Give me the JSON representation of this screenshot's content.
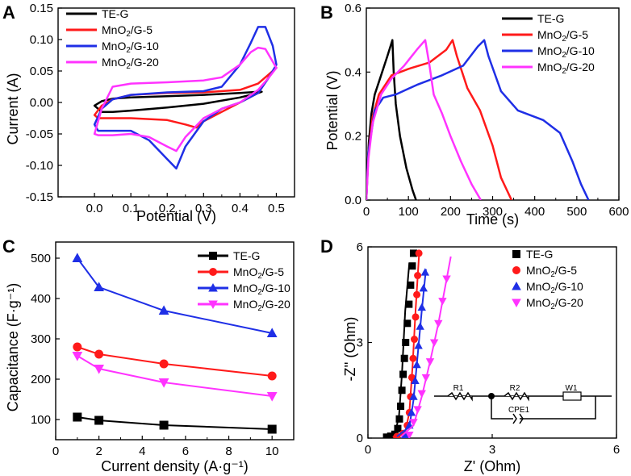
{
  "colors": {
    "black": "#000000",
    "red": "#ff1a1a",
    "blue": "#1f2fe6",
    "magenta": "#ff33ff"
  },
  "chart_data": [
    {
      "panel": "A",
      "type": "line",
      "title": "",
      "xlabel": "Potential (V)",
      "ylabel": "Current (A)",
      "xlim": [
        -0.1,
        0.55
      ],
      "ylim": [
        -0.15,
        0.15
      ],
      "xticks": [
        0.0,
        0.1,
        0.2,
        0.3,
        0.4,
        0.5
      ],
      "yticks": [
        -0.15,
        -0.1,
        -0.05,
        0.0,
        0.05,
        0.1,
        0.15
      ],
      "xtick_labels": [
        "0.0",
        "0.1",
        "0.2",
        "0.3",
        "0.4",
        "0.5"
      ],
      "ytick_labels": [
        "-0.15",
        "-0.10",
        "-0.05",
        "0.00",
        "0.05",
        "0.10",
        "0.15"
      ],
      "legend": "top-left",
      "series": [
        {
          "name": "TE-G",
          "color": "#000000",
          "x": [
            0.0,
            0.02,
            0.05,
            0.1,
            0.2,
            0.3,
            0.4,
            0.45,
            0.46,
            0.45,
            0.4,
            0.3,
            0.2,
            0.1,
            0.05,
            0.02,
            0.0
          ],
          "y": [
            -0.005,
            0.002,
            0.006,
            0.008,
            0.01,
            0.012,
            0.015,
            0.017,
            0.017,
            0.015,
            0.008,
            -0.002,
            -0.008,
            -0.013,
            -0.015,
            -0.015,
            -0.005
          ]
        },
        {
          "name": "MnO2/G-5",
          "color": "#ff1a1a",
          "x": [
            0.0,
            0.02,
            0.05,
            0.1,
            0.2,
            0.3,
            0.4,
            0.45,
            0.48,
            0.5,
            0.49,
            0.45,
            0.4,
            0.35,
            0.3,
            0.28,
            0.25,
            0.2,
            0.1,
            0.05,
            0.01,
            0.0
          ],
          "y": [
            -0.02,
            -0.005,
            0.005,
            0.012,
            0.015,
            0.016,
            0.02,
            0.03,
            0.045,
            0.055,
            0.05,
            0.015,
            0.0,
            -0.015,
            -0.03,
            -0.04,
            -0.035,
            -0.028,
            -0.025,
            -0.025,
            -0.025,
            -0.02
          ]
        },
        {
          "name": "MnO2/G-10",
          "color": "#1f2fe6",
          "x": [
            0.0,
            0.02,
            0.05,
            0.1,
            0.2,
            0.3,
            0.35,
            0.4,
            0.43,
            0.45,
            0.47,
            0.49,
            0.5,
            0.48,
            0.45,
            0.4,
            0.35,
            0.3,
            0.25,
            0.225,
            0.2,
            0.15,
            0.1,
            0.05,
            0.01,
            0.0
          ],
          "y": [
            -0.035,
            -0.01,
            0.005,
            0.012,
            0.016,
            0.018,
            0.025,
            0.06,
            0.095,
            0.12,
            0.12,
            0.09,
            0.06,
            0.04,
            0.015,
            0.0,
            -0.01,
            -0.03,
            -0.07,
            -0.105,
            -0.09,
            -0.06,
            -0.045,
            -0.045,
            -0.045,
            -0.035
          ]
        },
        {
          "name": "MnO2/G-20",
          "color": "#ff33ff",
          "x": [
            0.0,
            0.02,
            0.05,
            0.1,
            0.2,
            0.3,
            0.35,
            0.4,
            0.43,
            0.45,
            0.47,
            0.5,
            0.48,
            0.45,
            0.4,
            0.35,
            0.3,
            0.25,
            0.225,
            0.2,
            0.15,
            0.1,
            0.05,
            0.01,
            0.0
          ],
          "y": [
            -0.05,
            -0.01,
            0.025,
            0.03,
            0.032,
            0.035,
            0.04,
            0.06,
            0.08,
            0.087,
            0.085,
            0.055,
            0.04,
            0.02,
            0.0,
            -0.01,
            -0.025,
            -0.055,
            -0.077,
            -0.07,
            -0.055,
            -0.05,
            -0.052,
            -0.052,
            -0.05
          ]
        }
      ]
    },
    {
      "panel": "B",
      "type": "line",
      "title": "",
      "xlabel": "Time (s)",
      "ylabel": "Potential (V)",
      "xlim": [
        0,
        600
      ],
      "ylim": [
        0,
        0.6
      ],
      "xticks": [
        0,
        100,
        200,
        300,
        400,
        500,
        600
      ],
      "yticks": [
        0.0,
        0.2,
        0.4,
        0.6
      ],
      "xtick_labels": [
        "0",
        "100",
        "200",
        "300",
        "400",
        "500",
        "600"
      ],
      "ytick_labels": [
        "0.0",
        "0.2",
        "0.4",
        "0.6"
      ],
      "legend": "top-right",
      "series": [
        {
          "name": "TE-G",
          "color": "#000000",
          "x": [
            0,
            2,
            6,
            12,
            20,
            35,
            50,
            62,
            65,
            70,
            80,
            95,
            110,
            118
          ],
          "y": [
            0.0,
            0.08,
            0.18,
            0.27,
            0.33,
            0.39,
            0.45,
            0.5,
            0.4,
            0.3,
            0.2,
            0.1,
            0.03,
            0.0
          ]
        },
        {
          "name": "MnO2/G-5",
          "color": "#ff1a1a",
          "x": [
            0,
            5,
            15,
            30,
            60,
            100,
            150,
            190,
            205,
            215,
            240,
            270,
            300,
            320,
            345
          ],
          "y": [
            0.0,
            0.15,
            0.26,
            0.33,
            0.39,
            0.41,
            0.43,
            0.47,
            0.5,
            0.45,
            0.35,
            0.28,
            0.17,
            0.07,
            0.0
          ]
        },
        {
          "name": "MnO2/G-10",
          "color": "#1f2fe6",
          "x": [
            0,
            5,
            20,
            40,
            70,
            120,
            180,
            230,
            265,
            280,
            290,
            320,
            360,
            420,
            460,
            490,
            510,
            528
          ],
          "y": [
            0.0,
            0.15,
            0.28,
            0.32,
            0.33,
            0.36,
            0.39,
            0.42,
            0.48,
            0.5,
            0.45,
            0.34,
            0.28,
            0.25,
            0.21,
            0.12,
            0.05,
            0.0
          ]
        },
        {
          "name": "MnO2/G-20",
          "color": "#ff33ff",
          "x": [
            0,
            5,
            15,
            35,
            60,
            90,
            120,
            140,
            150,
            160,
            180,
            200,
            225,
            250,
            272
          ],
          "y": [
            0.0,
            0.13,
            0.24,
            0.33,
            0.38,
            0.42,
            0.47,
            0.5,
            0.42,
            0.33,
            0.27,
            0.2,
            0.12,
            0.05,
            0.0
          ]
        }
      ]
    },
    {
      "panel": "C",
      "type": "line",
      "title": "",
      "xlabel": "Current density (A·g⁻¹)",
      "ylabel": "Capacitance (F·g⁻¹)",
      "xlim": [
        0,
        11
      ],
      "ylim": [
        50,
        540
      ],
      "xticks": [
        0,
        2,
        4,
        6,
        8,
        10
      ],
      "yticks": [
        100,
        200,
        300,
        400,
        500
      ],
      "xtick_labels": [
        "0",
        "2",
        "4",
        "6",
        "8",
        "10"
      ],
      "ytick_labels": [
        "100",
        "200",
        "300",
        "400",
        "500"
      ],
      "legend": "top-right",
      "series": [
        {
          "name": "TE-G",
          "color": "#000000",
          "marker": "square",
          "x": [
            1,
            2,
            5,
            10
          ],
          "y": [
            106,
            98,
            86,
            76
          ]
        },
        {
          "name": "MnO2/G-5",
          "color": "#ff1a1a",
          "marker": "circle",
          "x": [
            1,
            2,
            5,
            10
          ],
          "y": [
            280,
            262,
            238,
            208
          ]
        },
        {
          "name": "MnO2/G-10",
          "color": "#1f2fe6",
          "marker": "triangle-up",
          "x": [
            1,
            2,
            5,
            10
          ],
          "y": [
            500,
            428,
            370,
            314
          ]
        },
        {
          "name": "MnO2/G-20",
          "color": "#ff33ff",
          "marker": "triangle-down",
          "x": [
            1,
            2,
            5,
            10
          ],
          "y": [
            258,
            226,
            192,
            158
          ]
        }
      ]
    },
    {
      "panel": "D",
      "type": "scatter",
      "title": "",
      "xlabel": "Z' (Ohm)",
      "ylabel": "-Z'' (Ohm)",
      "xlim": [
        0,
        6
      ],
      "ylim": [
        0,
        6
      ],
      "xticks": [
        0,
        3,
        6
      ],
      "yticks": [
        0,
        3,
        6
      ],
      "xtick_labels": [
        "0",
        "3",
        "6"
      ],
      "ytick_labels": [
        "0",
        "3",
        "6"
      ],
      "legend": "top-right",
      "series": [
        {
          "name": "TE-G",
          "color": "#000000",
          "marker": "square",
          "x": [
            0.45,
            0.55,
            0.65,
            0.72,
            0.76,
            0.79,
            0.82,
            0.85,
            0.88,
            0.91,
            0.95,
            0.99,
            1.03,
            1.07,
            1.1
          ],
          "y": [
            0.03,
            0.06,
            0.12,
            0.3,
            0.6,
            1.0,
            1.5,
            2.0,
            2.5,
            3.0,
            3.6,
            4.2,
            4.8,
            5.4,
            5.8
          ],
          "fit_x": [
            0.4,
            0.65,
            0.75,
            0.82,
            0.9,
            1.0
          ],
          "fit_y": [
            0.02,
            0.12,
            0.7,
            2.0,
            4.0,
            5.5
          ]
        },
        {
          "name": "MnO2/G-5",
          "color": "#ff1a1a",
          "marker": "circle",
          "x": [
            0.7,
            0.85,
            0.95,
            1.0,
            1.03,
            1.06,
            1.09,
            1.12,
            1.15,
            1.18,
            1.2,
            1.23
          ],
          "y": [
            0.05,
            0.15,
            0.4,
            0.8,
            1.3,
            1.9,
            2.5,
            3.1,
            3.8,
            4.5,
            5.1,
            5.8
          ],
          "fit_x": [
            0.6,
            0.9,
            1.0,
            1.08,
            1.15,
            1.24
          ],
          "fit_y": [
            0.03,
            0.2,
            0.8,
            2.3,
            4.0,
            5.9
          ]
        },
        {
          "name": "MnO2/G-10",
          "color": "#1f2fe6",
          "marker": "triangle-up",
          "x": [
            0.9,
            1.0,
            1.05,
            1.1,
            1.14,
            1.18,
            1.22,
            1.26,
            1.3,
            1.34,
            1.38
          ],
          "y": [
            0.1,
            0.4,
            0.8,
            1.3,
            1.8,
            2.3,
            2.9,
            3.5,
            4.1,
            4.7,
            5.2
          ],
          "fit_x": [
            0.7,
            1.0,
            1.1,
            1.2,
            1.3,
            1.4
          ],
          "fit_y": [
            0.05,
            0.35,
            1.2,
            2.6,
            4.0,
            5.3
          ]
        },
        {
          "name": "MnO2/G-20",
          "color": "#ff33ff",
          "marker": "triangle-down",
          "x": [
            1.0,
            1.1,
            1.2,
            1.3,
            1.4,
            1.5,
            1.6,
            1.7,
            1.8,
            1.9
          ],
          "y": [
            0.1,
            0.5,
            0.9,
            1.4,
            1.9,
            2.4,
            3.0,
            3.6,
            4.3,
            5.0
          ],
          "fit_x": [
            0.8,
            1.1,
            1.3,
            1.5,
            1.7,
            2.0
          ],
          "fit_y": [
            0.05,
            0.4,
            1.3,
            2.4,
            3.6,
            5.7
          ]
        }
      ],
      "inset": {
        "labels": [
          "R1",
          "R2",
          "W1",
          "CPE1"
        ]
      }
    }
  ],
  "panel_letters": [
    "A",
    "B",
    "C",
    "D"
  ]
}
